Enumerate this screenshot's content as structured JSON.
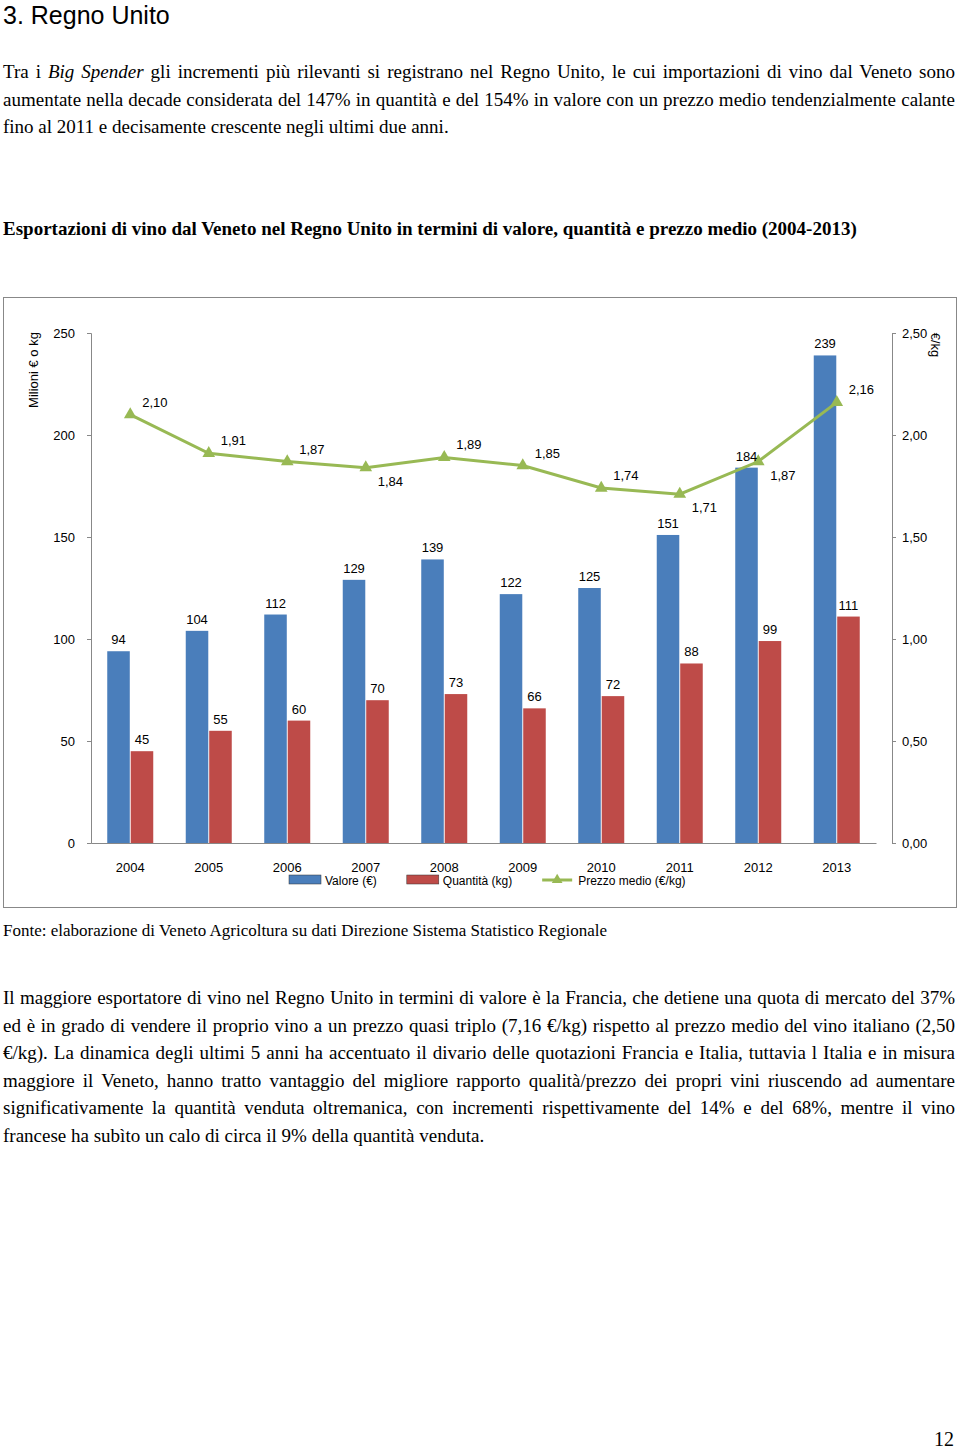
{
  "heading": "3. Regno Unito",
  "intro": {
    "before": "Tra i ",
    "italic": "Big Spender",
    "after": " gli incrementi più rilevanti si registrano nel Regno Unito, le cui importazioni di vino dal Veneto sono aumentate nella decade considerata del 147% in quantità e del 154% in valore con un prezzo medio tendenzialmente calante fino al 2011 e decisamente crescente negli ultimi due anni."
  },
  "chart_data": {
    "type": "bar",
    "title": "Esportazioni di vino dal Veneto nel Regno Unito in termini di valore, quantità e prezzo medio (2004-2013)",
    "y_label": "Milioni € o kg",
    "y2_label": "€/kg",
    "categories": [
      "2004",
      "2005",
      "2006",
      "2007",
      "2008",
      "2009",
      "2010",
      "2011",
      "2012",
      "2013"
    ],
    "ylim": [
      0,
      250
    ],
    "yticks": [
      0,
      50,
      100,
      150,
      200,
      250
    ],
    "y2lim": [
      0,
      2.5
    ],
    "y2ticks": [
      {
        "value": 0,
        "label": "0,00"
      },
      {
        "value": 0.5,
        "label": "0,50"
      },
      {
        "value": 1,
        "label": "1,00"
      },
      {
        "value": 1.5,
        "label": "1,50"
      },
      {
        "value": 2,
        "label": "2,00"
      },
      {
        "value": 2.5,
        "label": "2,50"
      }
    ],
    "grid": false,
    "legend": "bottom",
    "data_labels": true,
    "series": [
      {
        "name": "Valore (€)",
        "type": "bar",
        "color": "#4a7ebb",
        "values": [
          94,
          104,
          112,
          129,
          139,
          122,
          125,
          151,
          184,
          239
        ]
      },
      {
        "name": "Quantità (kg)",
        "type": "bar",
        "color": "#be4b48",
        "values": [
          45,
          55,
          60,
          70,
          73,
          66,
          72,
          88,
          99,
          111
        ]
      },
      {
        "name": "Prezzo medio (€/kg)",
        "type": "line",
        "axis": "y2",
        "color": "#98b954",
        "marker": "triangle",
        "values": [
          2.1,
          1.91,
          1.87,
          1.84,
          1.89,
          1.85,
          1.74,
          1.71,
          1.87,
          2.16
        ],
        "value_labels": [
          "2,10",
          "1,91",
          "1,87",
          "1,84",
          "1,89",
          "1,85",
          "1,74",
          "1,71",
          "1,87",
          "2,16"
        ]
      }
    ]
  },
  "source": "Fonte: elaborazione di Veneto Agricoltura su dati Direzione Sistema Statistico Regionale",
  "closing": "Il maggiore esportatore di vino nel Regno Unito in termini di valore è la Francia, che detiene una quota di mercato del 37% ed è in grado di vendere il proprio vino a un prezzo quasi triplo (7,16 €/kg) rispetto al prezzo medio del vino italiano (2,50 €/kg). La dinamica degli ultimi 5 anni ha accentuato il divario delle quotazioni Francia e Italia, tuttavia l Italia e in misura maggiore il Veneto, hanno tratto vantaggio del migliore rapporto qualità/prezzo dei propri vini riuscendo ad aumentare significativamente la quantità venduta oltremanica, con incrementi rispettivamente del 14% e del 68%, mentre il vino francese ha subìto un calo di circa il 9% della quantità venduta.",
  "page_number": "12"
}
